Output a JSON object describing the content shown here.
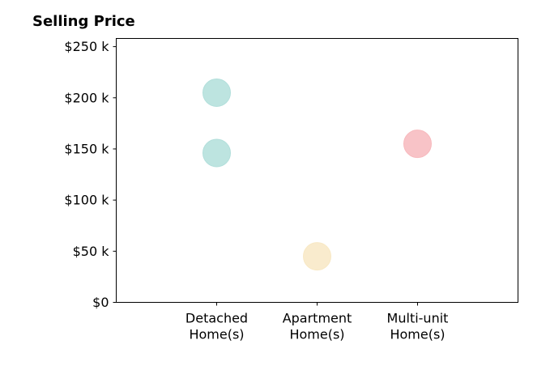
{
  "chart_data": {
    "type": "scatter",
    "title": "Selling Price",
    "xlabel": "",
    "ylabel": "",
    "categories": [
      [
        "Detached",
        "Home(s)"
      ],
      [
        "Apartment",
        "Home(s)"
      ],
      [
        "Multi-unit",
        "Home(s)"
      ]
    ],
    "y_ticks": [
      {
        "value": 0,
        "label": "$0"
      },
      {
        "value": 50000,
        "label": "$50 k"
      },
      {
        "value": 100000,
        "label": "$100 k"
      },
      {
        "value": 150000,
        "label": "$150 k"
      },
      {
        "value": 200000,
        "label": "$200 k"
      },
      {
        "value": 250000,
        "label": "$250 k"
      }
    ],
    "ylim": [
      0,
      258000
    ],
    "xlim": [
      -1,
      3
    ],
    "grid": false,
    "legend": "none",
    "points": [
      {
        "category": 0,
        "value": 205000,
        "color": "#b2dfdb"
      },
      {
        "category": 0,
        "value": 146000,
        "color": "#b2dfdb"
      },
      {
        "category": 1,
        "value": 45000,
        "color": "#f8e8c4"
      },
      {
        "category": 2,
        "value": 155000,
        "color": "#f7b9bd"
      }
    ]
  }
}
